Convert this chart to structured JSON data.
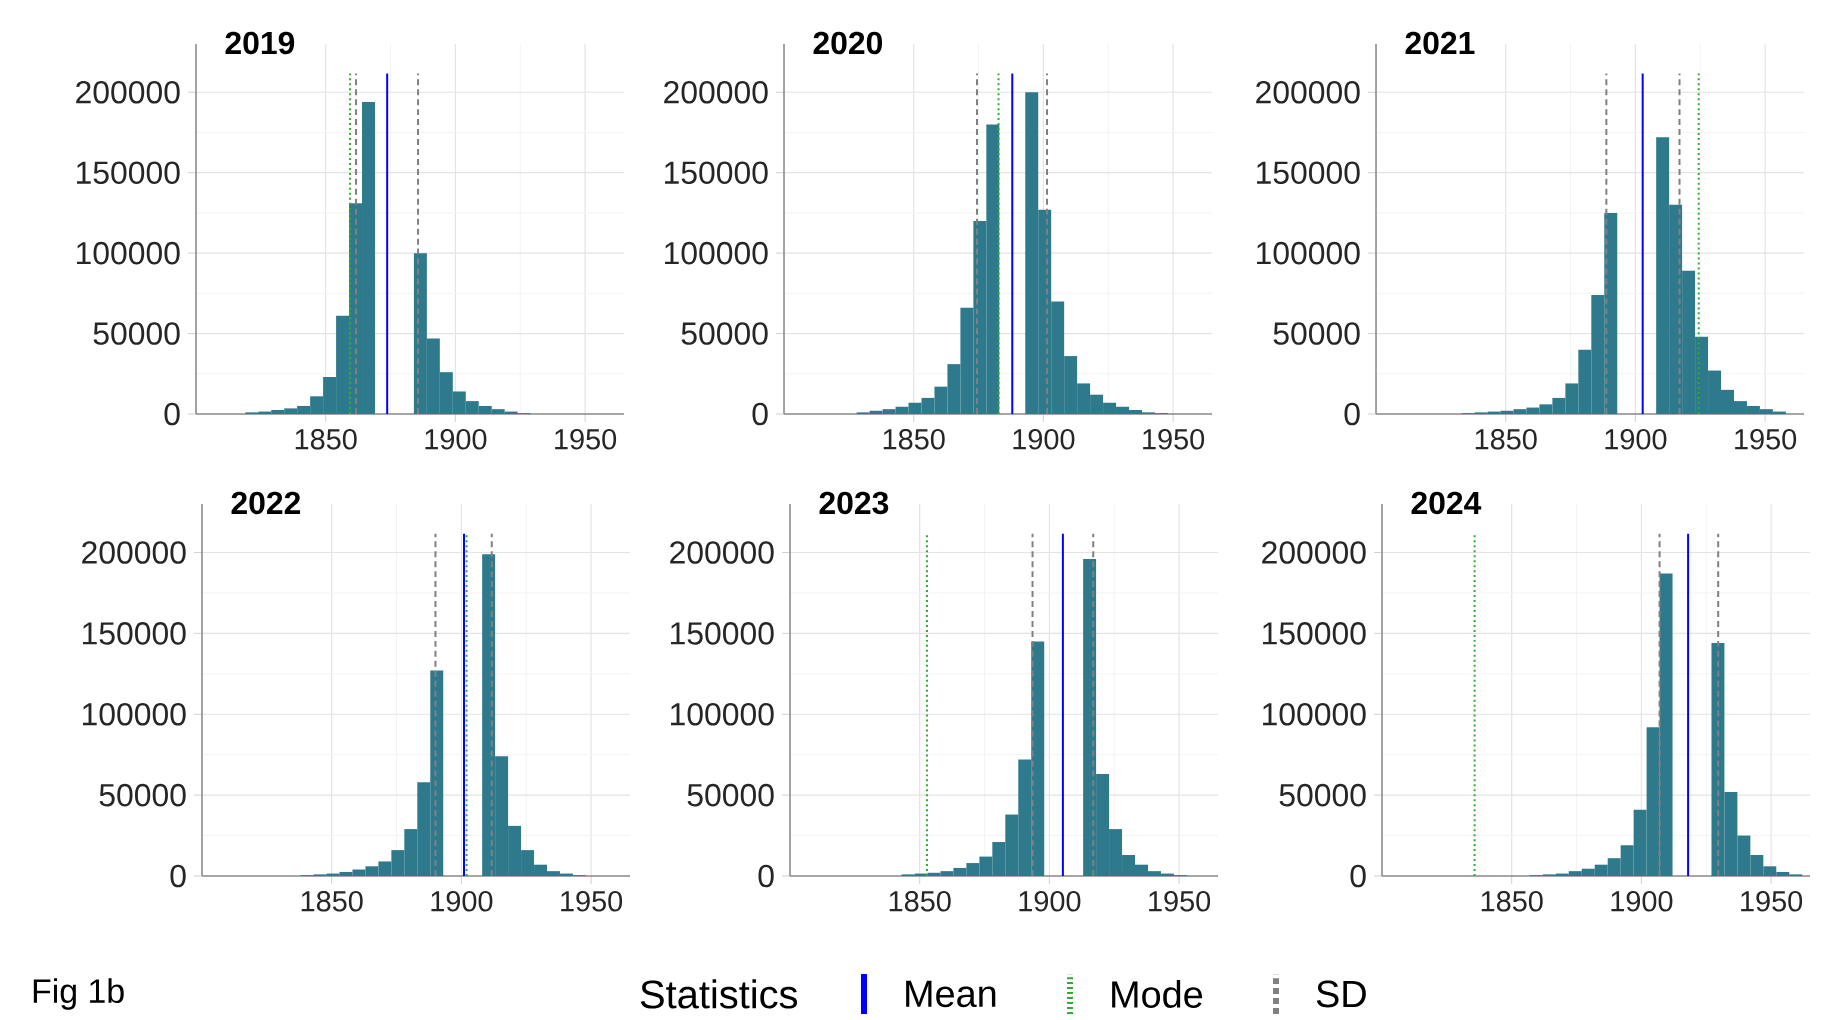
{
  "chart_data": [
    {
      "type": "histogram",
      "title": "2019",
      "color": "#2e7a8c",
      "xlim": [
        1800,
        1965
      ],
      "ylim": [
        0,
        230000
      ],
      "xticks": [
        1850,
        1900,
        1950
      ],
      "yticks": [
        0,
        50000,
        100000,
        150000,
        200000
      ],
      "grid": true,
      "bins": [
        1819,
        1824,
        1829,
        1834,
        1839,
        1844,
        1849,
        1854,
        1859,
        1864,
        1869,
        1874,
        1879,
        1884,
        1889,
        1894,
        1899,
        1904,
        1909,
        1914,
        1919,
        1924,
        1929
      ],
      "values": [
        1000,
        1500,
        2500,
        3500,
        5000,
        11000,
        23000,
        61000,
        131000,
        194000,
        0,
        0,
        0,
        100000,
        47000,
        26000,
        14000,
        8000,
        5000,
        3000,
        1500,
        500
      ],
      "ref_lines": [
        {
          "axis": "x",
          "value": 1873.7,
          "color": "#0000ff",
          "line_style": "solid"
        },
        {
          "axis": "x",
          "value": 1859.4,
          "color": "#33aa33",
          "line_style": "dotted"
        },
        {
          "axis": "x",
          "value": 1861.7,
          "color": "#808080",
          "line_style": "dashed"
        },
        {
          "axis": "x",
          "value": 1885.6,
          "color": "#808080",
          "line_style": "dashed"
        }
      ]
    },
    {
      "type": "histogram",
      "title": "2020",
      "color": "#2e7a8c",
      "xlim": [
        1800,
        1965
      ],
      "ylim": [
        0,
        230000
      ],
      "xticks": [
        1850,
        1900,
        1950
      ],
      "yticks": [
        0,
        50000,
        100000,
        150000,
        200000
      ],
      "grid": true,
      "bins": [
        1828,
        1833,
        1838,
        1843,
        1848,
        1853,
        1858,
        1863,
        1868,
        1873,
        1878,
        1883,
        1888,
        1893,
        1898,
        1903,
        1908,
        1913,
        1918,
        1923,
        1928,
        1933,
        1938,
        1943,
        1948
      ],
      "values": [
        1000,
        2000,
        3000,
        4500,
        7000,
        10000,
        17000,
        31000,
        66000,
        120000,
        180000,
        0,
        0,
        200000,
        127000,
        70000,
        36000,
        19000,
        12000,
        7000,
        4500,
        2500,
        1000,
        500
      ],
      "ref_lines": [
        {
          "axis": "x",
          "value": 1888,
          "color": "#0000ff",
          "line_style": "solid"
        },
        {
          "axis": "x",
          "value": 1882.7,
          "color": "#33aa33",
          "line_style": "dotted"
        },
        {
          "axis": "x",
          "value": 1874.4,
          "color": "#808080",
          "line_style": "dashed"
        },
        {
          "axis": "x",
          "value": 1901.4,
          "color": "#808080",
          "line_style": "dashed"
        }
      ]
    },
    {
      "type": "histogram",
      "title": "2021",
      "color": "#2e7a8c",
      "xlim": [
        1800,
        1965
      ],
      "ylim": [
        0,
        230000
      ],
      "xticks": [
        1850,
        1900,
        1950
      ],
      "yticks": [
        0,
        50000,
        100000,
        150000,
        200000
      ],
      "grid": true,
      "bins": [
        1833,
        1838,
        1843,
        1848,
        1853,
        1858,
        1863,
        1868,
        1873,
        1878,
        1883,
        1888,
        1893,
        1898,
        1903,
        1908,
        1913,
        1918,
        1923,
        1928,
        1933,
        1938,
        1943,
        1948,
        1953,
        1958
      ],
      "values": [
        500,
        1000,
        1500,
        2000,
        3000,
        4000,
        6000,
        10000,
        19000,
        40000,
        74000,
        125000,
        0,
        0,
        0,
        172000,
        130000,
        89000,
        48000,
        27000,
        15000,
        8000,
        5000,
        3000,
        1500
      ],
      "ref_lines": [
        {
          "axis": "x",
          "value": 1902.8,
          "color": "#0000ff",
          "line_style": "solid"
        },
        {
          "axis": "x",
          "value": 1924.4,
          "color": "#33aa33",
          "line_style": "dotted"
        },
        {
          "axis": "x",
          "value": 1888.8,
          "color": "#808080",
          "line_style": "dashed"
        },
        {
          "axis": "x",
          "value": 1917,
          "color": "#808080",
          "line_style": "dashed"
        }
      ]
    },
    {
      "type": "histogram",
      "title": "2022",
      "color": "#2e7a8c",
      "xlim": [
        1800,
        1965
      ],
      "ylim": [
        0,
        230000
      ],
      "xticks": [
        1850,
        1900,
        1950
      ],
      "yticks": [
        0,
        50000,
        100000,
        150000,
        200000
      ],
      "grid": true,
      "bins": [
        1838,
        1843,
        1848,
        1853,
        1858,
        1863,
        1868,
        1873,
        1878,
        1883,
        1888,
        1893,
        1898,
        1903,
        1908,
        1913,
        1918,
        1923,
        1928,
        1933,
        1938,
        1943,
        1948
      ],
      "values": [
        500,
        1000,
        1500,
        2500,
        4000,
        6000,
        9000,
        16000,
        29000,
        58000,
        127000,
        0,
        0,
        0,
        199000,
        74000,
        31000,
        16000,
        7000,
        3000,
        1500,
        500
      ],
      "annotations": [
        "Fig 1b"
      ],
      "ref_lines": [
        {
          "axis": "x",
          "value": 1901,
          "color": "#0000ff",
          "line_style": "solid"
        },
        {
          "axis": "x",
          "value": 1902,
          "color": "#33aa33",
          "line_style": "dotted"
        },
        {
          "axis": "x",
          "value": 1890,
          "color": "#808080",
          "line_style": "dashed"
        },
        {
          "axis": "x",
          "value": 1911.7,
          "color": "#808080",
          "line_style": "dashed"
        }
      ]
    },
    {
      "type": "histogram",
      "title": "2023",
      "color": "#2e7a8c",
      "xlim": [
        1800,
        1965
      ],
      "ylim": [
        0,
        230000
      ],
      "xticks": [
        1850,
        1900,
        1950
      ],
      "yticks": [
        0,
        50000,
        100000,
        150000,
        200000
      ],
      "grid": true,
      "bins": [
        1843,
        1848,
        1853,
        1858,
        1863,
        1868,
        1873,
        1878,
        1883,
        1888,
        1893,
        1898,
        1903,
        1908,
        1913,
        1918,
        1923,
        1928,
        1933,
        1938,
        1943,
        1948,
        1953
      ],
      "values": [
        1000,
        1500,
        2000,
        3000,
        5000,
        8000,
        12000,
        21000,
        38000,
        72000,
        145000,
        0,
        0,
        0,
        196000,
        63000,
        29000,
        13000,
        7000,
        3000,
        1500,
        500
      ],
      "legend_title": "Statistics",
      "legend": "bottom",
      "ref_lines": [
        {
          "axis": "x",
          "value": 1905.2,
          "color": "#0000ff",
          "line_style": "solid",
          "label": "Mean"
        },
        {
          "axis": "x",
          "value": 1852.8,
          "color": "#33aa33",
          "line_style": "dotted",
          "label": "Mode"
        },
        {
          "axis": "x",
          "value": 1893.5,
          "color": "#808080",
          "line_style": "dashed",
          "label": "SD"
        },
        {
          "axis": "x",
          "value": 1916.9,
          "color": "#808080",
          "line_style": "dashed"
        }
      ]
    },
    {
      "type": "histogram",
      "title": "2024",
      "color": "#2e7a8c",
      "xlim": [
        1800,
        1965
      ],
      "ylim": [
        0,
        230000
      ],
      "xticks": [
        1850,
        1900,
        1950
      ],
      "yticks": [
        0,
        50000,
        100000,
        150000,
        200000
      ],
      "grid": true,
      "bins": [
        1857,
        1862,
        1867,
        1872,
        1877,
        1882,
        1887,
        1892,
        1897,
        1902,
        1907,
        1912,
        1917,
        1922,
        1927,
        1932,
        1937,
        1942,
        1947,
        1952,
        1957,
        1962
      ],
      "values": [
        500,
        1000,
        1500,
        3000,
        4500,
        7000,
        11000,
        19000,
        41000,
        92000,
        187000,
        0,
        0,
        0,
        144000,
        52000,
        25000,
        13000,
        6000,
        2500,
        1000
      ],
      "ref_lines": [
        {
          "axis": "x",
          "value": 1918,
          "color": "#0000ff",
          "line_style": "solid"
        },
        {
          "axis": "x",
          "value": 1835.7,
          "color": "#33aa33",
          "line_style": "dotted"
        },
        {
          "axis": "x",
          "value": 1907,
          "color": "#808080",
          "line_style": "dashed"
        },
        {
          "axis": "x",
          "value": 1929.6,
          "color": "#808080",
          "line_style": "dashed"
        }
      ]
    }
  ]
}
